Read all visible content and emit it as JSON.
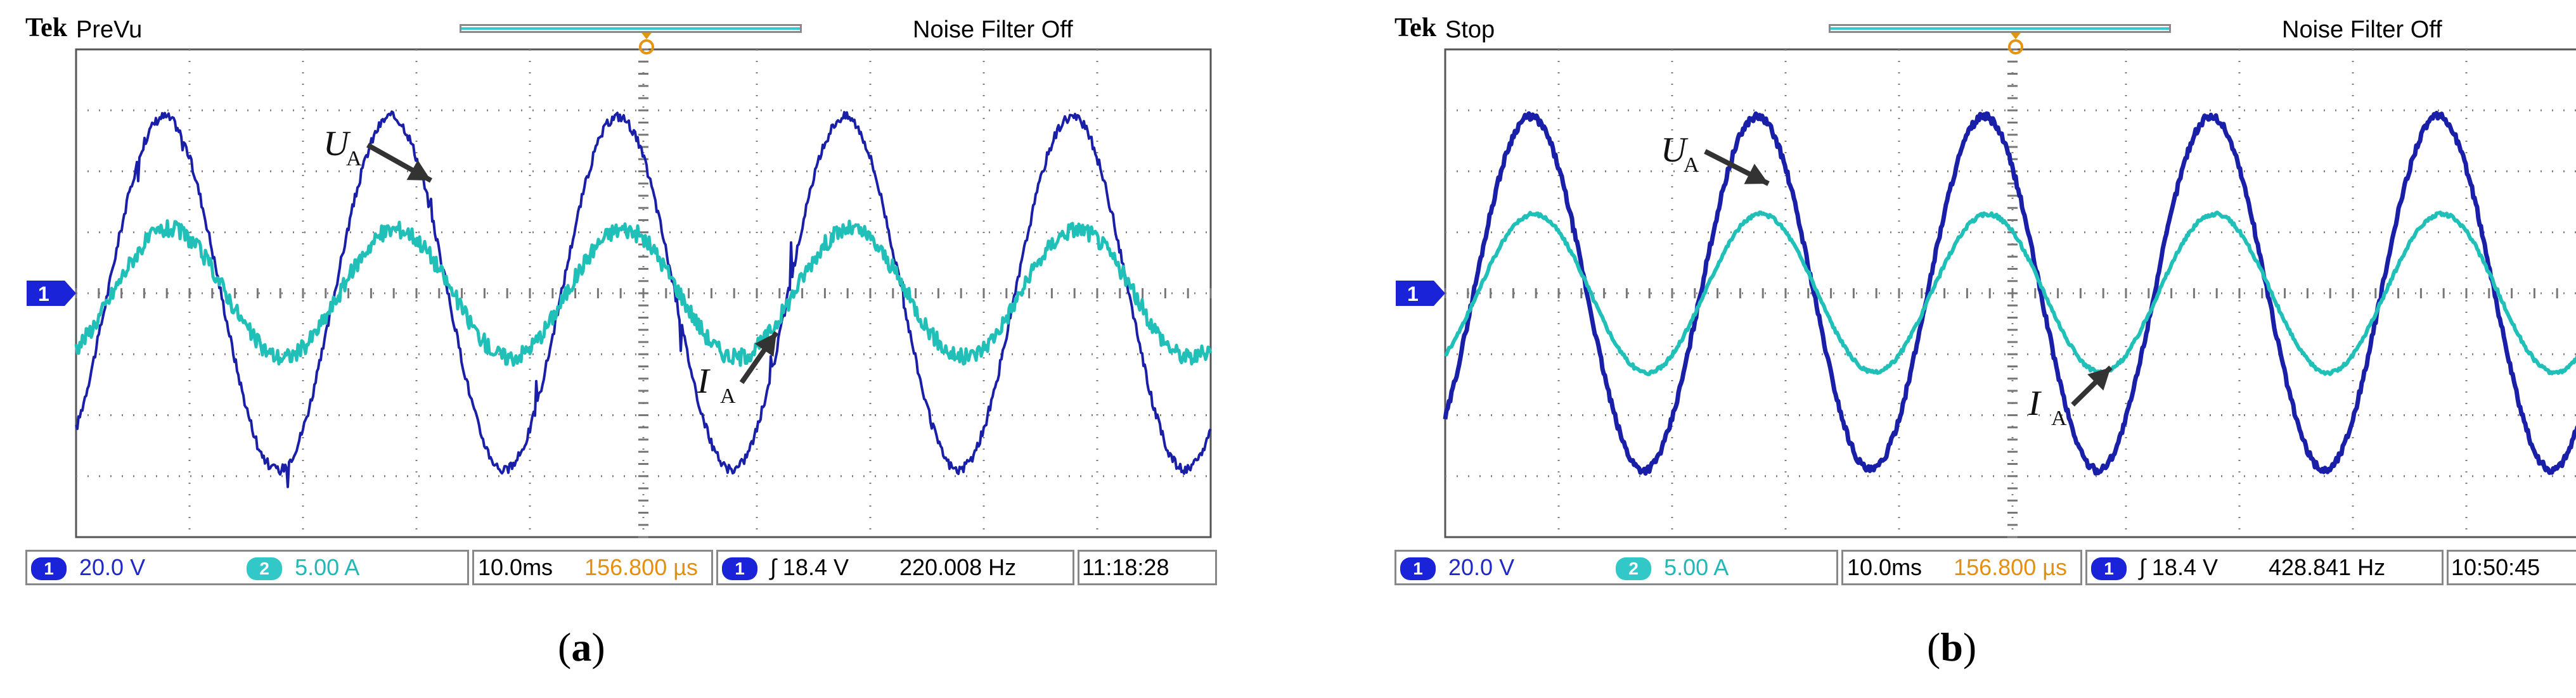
{
  "chart_data": [
    {
      "type": "line",
      "panel": "(a)",
      "header": {
        "brand": "Tek",
        "status": "PreVu",
        "noise_filter": "Noise Filter Off"
      },
      "series": [
        {
          "name": "U_A",
          "channel": 1,
          "amplitude_div": 2.9,
          "offset_div": 0.0,
          "freq_hz": 50,
          "phase_deg": 0,
          "noise": 0.08
        },
        {
          "name": "I_A",
          "channel": 2,
          "amplitude_div": 1.05,
          "offset_div": 0.0,
          "freq_hz": 50,
          "phase_deg": -8,
          "noise": 0.14
        }
      ],
      "annotations": {
        "ua_base": "U",
        "ua_sub": "A",
        "ia_base": "I",
        "ia_sub": "A"
      },
      "scale": {
        "ch1_marker": "1",
        "ch2_marker": "2",
        "ch1_scale": "20.0 V",
        "ch2_scale": "5.00 A",
        "time_div": "10.0ms",
        "trigger_pos": "156.800 µs",
        "trig_marker": "1",
        "trigger_symbol": "∫",
        "trigger_level": "18.4 V",
        "frequency": "220.008 Hz",
        "time": "11:18:28"
      },
      "grid": {
        "divisions_x": 10,
        "divisions_y": 8,
        "x_range_ms": [
          0,
          100
        ],
        "y_range_div": [
          -4,
          4
        ]
      },
      "colors": {
        "ch1": "#1a1fa8",
        "ch2": "#20c0b8",
        "grid": "#808080"
      },
      "caption_letter": "a"
    },
    {
      "type": "line",
      "panel": "(b)",
      "header": {
        "brand": "Tek",
        "status": "Stop",
        "noise_filter": "Noise Filter Off"
      },
      "series": [
        {
          "name": "U_A",
          "channel": 1,
          "amplitude_div": 2.9,
          "offset_div": 0.0,
          "freq_hz": 50,
          "phase_deg": 0,
          "noise": 0.06
        },
        {
          "name": "I_A",
          "channel": 2,
          "amplitude_div": 1.3,
          "offset_div": 0.0,
          "freq_hz": 50,
          "phase_deg": -6,
          "noise": 0.03
        }
      ],
      "annotations": {
        "ua_base": "U",
        "ua_sub": "A",
        "ia_base": "I",
        "ia_sub": "A"
      },
      "scale": {
        "ch1_marker": "1",
        "ch2_marker": "2",
        "ch1_scale": "20.0 V",
        "ch2_scale": "5.00 A",
        "time_div": "10.0ms",
        "trigger_pos": "156.800 µs",
        "trig_marker": "1",
        "trigger_symbol": "∫",
        "trigger_level": "18.4 V",
        "frequency": "428.841 Hz",
        "time": "10:50:45"
      },
      "grid": {
        "divisions_x": 10,
        "divisions_y": 8,
        "x_range_ms": [
          0,
          100
        ],
        "y_range_div": [
          -4,
          4
        ]
      },
      "colors": {
        "ch1": "#1a1fa8",
        "ch2": "#20c0b8",
        "grid": "#808080"
      },
      "caption_letter": "b"
    }
  ]
}
